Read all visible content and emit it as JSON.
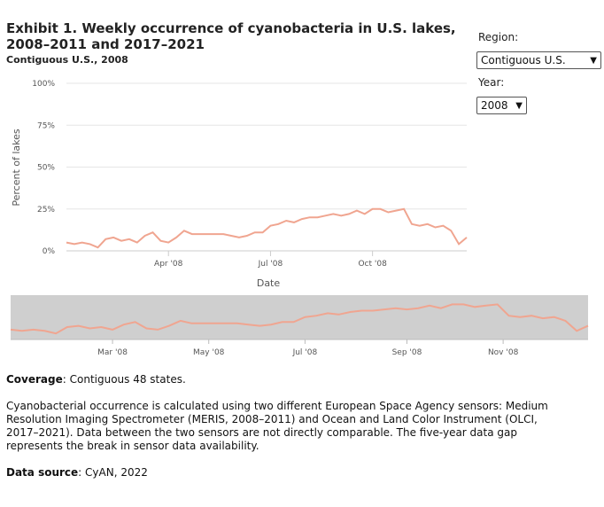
{
  "title": "Exhibit 1. Weekly occurrence of cyanobacteria in U.S. lakes, 2008–2011 and 2017–2021",
  "subtitle": "Contiguous U.S., 2008",
  "controls": {
    "region_label": "Region:",
    "region_value": "Contiguous U.S.",
    "year_label": "Year:",
    "year_value": "2008"
  },
  "notes": {
    "coverage_label": "Coverage",
    "coverage_text": ": Contiguous 48 states.",
    "description": "Cyanobacterial occurrence is calculated using two different European Space Agency sensors: Medium Resolution Imaging Spectrometer (MERIS, 2008–2011) and Ocean and Land Color Instrument (OLCI, 2017–2021). Data between the two sensors are not directly comparable. The five-year data gap represents the break in sensor data availability.",
    "source_label": "Data source",
    "source_text": ": CyAN, 2022"
  },
  "colors": {
    "line": "#f0a590",
    "grid": "#e6e6e6",
    "navigator_bg": "#cfcfcf"
  },
  "chart_data": {
    "type": "line",
    "title": "Exhibit 1. Weekly occurrence of cyanobacteria in U.S. lakes, 2008–2011 and 2017–2021",
    "xlabel": "Date",
    "ylabel": "Percent of lakes",
    "ylim": [
      0,
      100
    ],
    "y_ticks": [
      "0%",
      "25%",
      "50%",
      "75%",
      "100%"
    ],
    "y_tick_values": [
      0,
      25,
      50,
      75,
      100
    ],
    "x_ticks": [
      "Apr '08",
      "Jul '08",
      "Oct '08"
    ],
    "x_tick_weeks": [
      13,
      26,
      39
    ],
    "navigator_ticks": [
      "Mar '08",
      "May '08",
      "Jul '08",
      "Sep '08",
      "Nov '08"
    ],
    "navigator_tick_weeks": [
      9,
      17.5,
      26,
      35,
      43.5
    ],
    "x_unit": "week of 2008",
    "series": [
      {
        "name": "Contiguous U.S., 2008",
        "x": [
          0,
          1,
          2,
          3,
          4,
          5,
          6,
          7,
          8,
          9,
          10,
          11,
          12,
          13,
          14,
          15,
          16,
          17,
          18,
          19,
          20,
          21,
          22,
          23,
          24,
          25,
          26,
          27,
          28,
          29,
          30,
          31,
          32,
          33,
          34,
          35,
          36,
          37,
          38,
          39,
          40,
          41,
          42,
          43,
          44,
          45,
          46,
          47,
          48,
          49,
          50,
          51
        ],
        "values": [
          5,
          4,
          5,
          4,
          2,
          7,
          8,
          6,
          7,
          5,
          9,
          11,
          6,
          5,
          8,
          12,
          10,
          10,
          10,
          10,
          10,
          9,
          8,
          9,
          11,
          11,
          15,
          16,
          18,
          17,
          19,
          20,
          20,
          21,
          22,
          21,
          22,
          24,
          22,
          25,
          25,
          23,
          24,
          25,
          16,
          15,
          16,
          14,
          15,
          12,
          4,
          8
        ]
      }
    ]
  }
}
